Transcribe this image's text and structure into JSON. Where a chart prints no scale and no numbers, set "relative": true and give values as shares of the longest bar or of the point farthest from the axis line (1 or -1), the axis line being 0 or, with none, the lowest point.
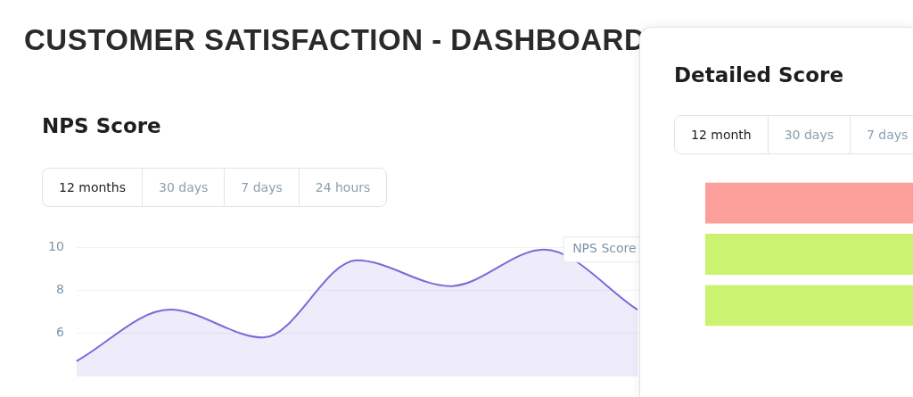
{
  "chart_data": [
    {
      "type": "area",
      "title": "CUSTOMER SATISFACTION - DASHBOARD",
      "subtitle": "NPS Score",
      "annotations": [
        "12 months",
        "30 days",
        "7 days",
        "24 hours"
      ],
      "categories": [
        null,
        null,
        null,
        null,
        null,
        null,
        null
      ],
      "series": [
        {
          "name": "NPS Score",
          "color": "#7c6ad8",
          "values": [
            4.7,
            7.1,
            5.8,
            9.4,
            8.2,
            9.9,
            7.1
          ]
        }
      ],
      "ylim": [
        4,
        10
      ],
      "yticks": [
        {
          "value": 4,
          "label": null
        },
        6,
        8,
        10
      ],
      "grid": "y",
      "tick_labels": "y",
      "legend": false
    },
    {
      "type": "bar",
      "orientation": "horizontal",
      "relative": true,
      "title": "Detailed Score",
      "annotations": [
        "12 month",
        "30 days",
        "7 days"
      ],
      "categories": [
        null,
        null,
        null
      ],
      "values": [
        1,
        1,
        1
      ],
      "colors": [
        "#fc9e9a",
        "#cbf36f",
        "#cbf36f"
      ],
      "tick_labels": false,
      "legend": false
    }
  ]
}
